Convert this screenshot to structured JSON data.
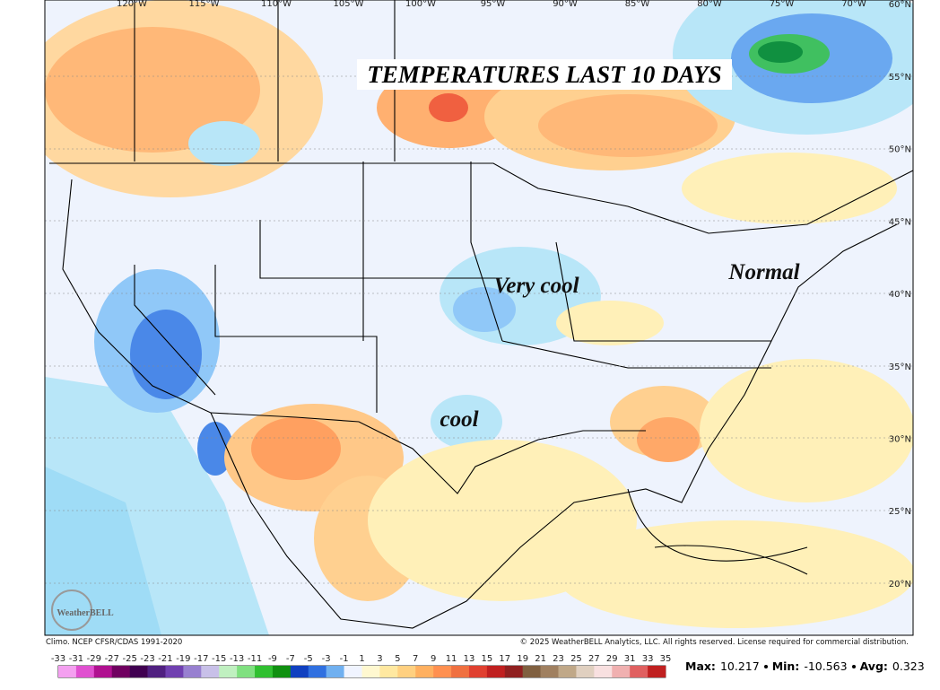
{
  "title": "TEMPERATURES LAST 10 DAYS",
  "annotations": [
    "Very cool",
    "cool",
    "Normal"
  ],
  "longitude_labels": [
    "120°W",
    "115°W",
    "110°W",
    "105°W",
    "100°W",
    "95°W",
    "90°W",
    "85°W",
    "80°W",
    "75°W",
    "70°W"
  ],
  "corner_label": "60°N",
  "latitude_labels": [
    "55°N",
    "50°N",
    "45°N",
    "40°N",
    "35°N",
    "30°N",
    "25°N",
    "20°N"
  ],
  "logo": "WeatherBELL",
  "climo_note": "Climo. NCEP CFSR/CDAS 1991-2020",
  "copyright": "© 2025 WeatherBELL Analytics, LLC. All rights reserved. License required for commercial distribution.",
  "colorbar": {
    "ticks": [
      -33,
      -31,
      -29,
      -27,
      -25,
      -23,
      -21,
      -19,
      -17,
      -15,
      -13,
      -11,
      -9,
      -7,
      -5,
      -3,
      -1,
      1,
      3,
      5,
      7,
      9,
      11,
      13,
      15,
      17,
      19,
      21,
      23,
      25,
      27,
      29,
      31,
      33,
      35
    ],
    "colors": [
      "#f4a0f0",
      "#e050d0",
      "#b01090",
      "#700060",
      "#400050",
      "#502080",
      "#7040b0",
      "#9880d0",
      "#c8c0e8",
      "#c0f0c0",
      "#80e080",
      "#30c030",
      "#109010",
      "#1040c0",
      "#3070e0",
      "#70b0f0",
      "#f0f4ff",
      "#fff8d0",
      "#ffe8a0",
      "#ffd080",
      "#ffb060",
      "#ff9050",
      "#f07040",
      "#e04030",
      "#c02020",
      "#902020",
      "#806040",
      "#a08060",
      "#c0a888",
      "#e0d0c0",
      "#f8e0e0",
      "#f0b0b0",
      "#e06060",
      "#c02020"
    ]
  },
  "stats": [
    {
      "label": "Max:",
      "value": 10.217
    },
    {
      "label": "Min:",
      "value": -10.563
    },
    {
      "label": "Avg:",
      "value": 0.323
    }
  ]
}
